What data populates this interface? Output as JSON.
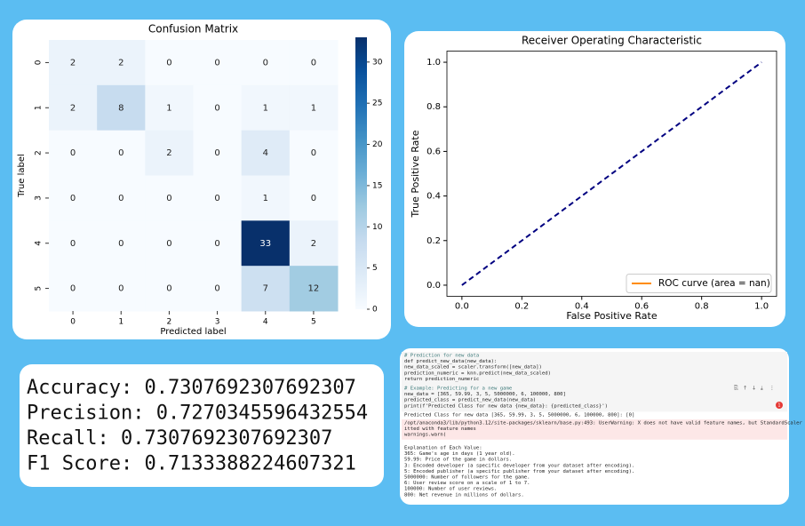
{
  "chart_data": [
    {
      "type": "heatmap",
      "title": "Confusion Matrix",
      "xlabel": "Predicted label",
      "ylabel": "True label",
      "x_categories": [
        "0",
        "1",
        "2",
        "3",
        "4",
        "5"
      ],
      "y_categories": [
        "0",
        "1",
        "2",
        "3",
        "4",
        "5"
      ],
      "values": [
        [
          2,
          2,
          0,
          0,
          0,
          0
        ],
        [
          2,
          8,
          1,
          0,
          1,
          1
        ],
        [
          0,
          0,
          2,
          0,
          4,
          0
        ],
        [
          0,
          0,
          0,
          0,
          1,
          0
        ],
        [
          0,
          0,
          0,
          0,
          33,
          2
        ],
        [
          0,
          0,
          0,
          0,
          7,
          12
        ]
      ],
      "zlim": [
        0,
        33
      ],
      "zticks": [
        0,
        5,
        10,
        15,
        20,
        25,
        30
      ],
      "colors": [
        "#f7fbff",
        "#deebf7",
        "#c6dbef",
        "#9ecae1",
        "#6baed6",
        "#4292c6",
        "#2171b5",
        "#08519c",
        "#08306b"
      ]
    },
    {
      "type": "line",
      "title": "Receiver Operating Characteristic",
      "xlabel": "False Positive Rate",
      "ylabel": "True Positive Rate",
      "xlim": [
        -0.05,
        1.05
      ],
      "ylim": [
        -0.05,
        1.05
      ],
      "xticks": [
        {
          "value": 0,
          "label": "0.0"
        },
        {
          "value": 0.2,
          "label": "0.2"
        },
        {
          "value": 0.4,
          "label": "0.4"
        },
        {
          "value": 0.6,
          "label": "0.6"
        },
        {
          "value": 0.8,
          "label": "0.8"
        },
        {
          "value": 1,
          "label": "1.0"
        }
      ],
      "yticks": [
        {
          "value": 0,
          "label": "0.0"
        },
        {
          "value": 0.2,
          "label": "0.2"
        },
        {
          "value": 0.4,
          "label": "0.4"
        },
        {
          "value": 0.6,
          "label": "0.6"
        },
        {
          "value": 0.8,
          "label": "0.8"
        },
        {
          "value": 1,
          "label": "1.0"
        }
      ],
      "legend": "lower right",
      "series": [
        {
          "name": "ROC curve (area = nan)",
          "color": "darkorange",
          "x": [],
          "values": []
        },
        {
          "color": "navy",
          "dashed": true,
          "x": [
            0,
            1
          ],
          "values": [
            0,
            1
          ]
        }
      ]
    }
  ],
  "metrics": {
    "lines": [
      "Accuracy: 0.7307692307692307",
      "Precision: 0.7270345596432554",
      "Recall: 0.7307692307692307",
      "F1 Score: 0.7133388224607321"
    ]
  },
  "notebook": {
    "cell1": [
      "# Prediction for new data",
      "def predict_new_data(new_data):",
      "    new_data_scaled = scaler.transform([new_data])",
      "    prediction_numeric = knn.predict(new_data_scaled)",
      "    return prediction_numeric"
    ],
    "cell2": [
      "# Example: Predicting for a new game",
      "new_data = [365, 59.99, 3, 5, 5000000, 6, 100000, 800]",
      "predicted_class = predict_new_data(new_data)",
      "print(f'Predicted Class for new data {new_data}: {predicted_class}')"
    ],
    "badge": "1",
    "output": "Predicted Class for new data [365, 59.99, 3, 5, 5000000, 6, 100000, 800]: [0]",
    "warning": [
      "/opt/anaconda3/lib/python3.12/site-packages/sklearn/base.py:493: UserWarning: X does not have valid feature names, but StandardScaler was f",
      "itted with feature names",
      "  warnings.warn("
    ],
    "explanation": [
      "Explanation of Each Value:",
      "365: Game's age in days (1 year old).",
      "59.99: Price of the game in dollars.",
      "3: Encoded developer (a specific developer from your dataset after encoding).",
      "5: Encoded publisher (a specific publisher from your dataset after encoding).",
      "5000000: Number of followers for the game.",
      "6: User review score on a scale of 1 to 7.",
      "100000: Number of user reviews.",
      "800: Net revenue in millions of dollars."
    ]
  }
}
